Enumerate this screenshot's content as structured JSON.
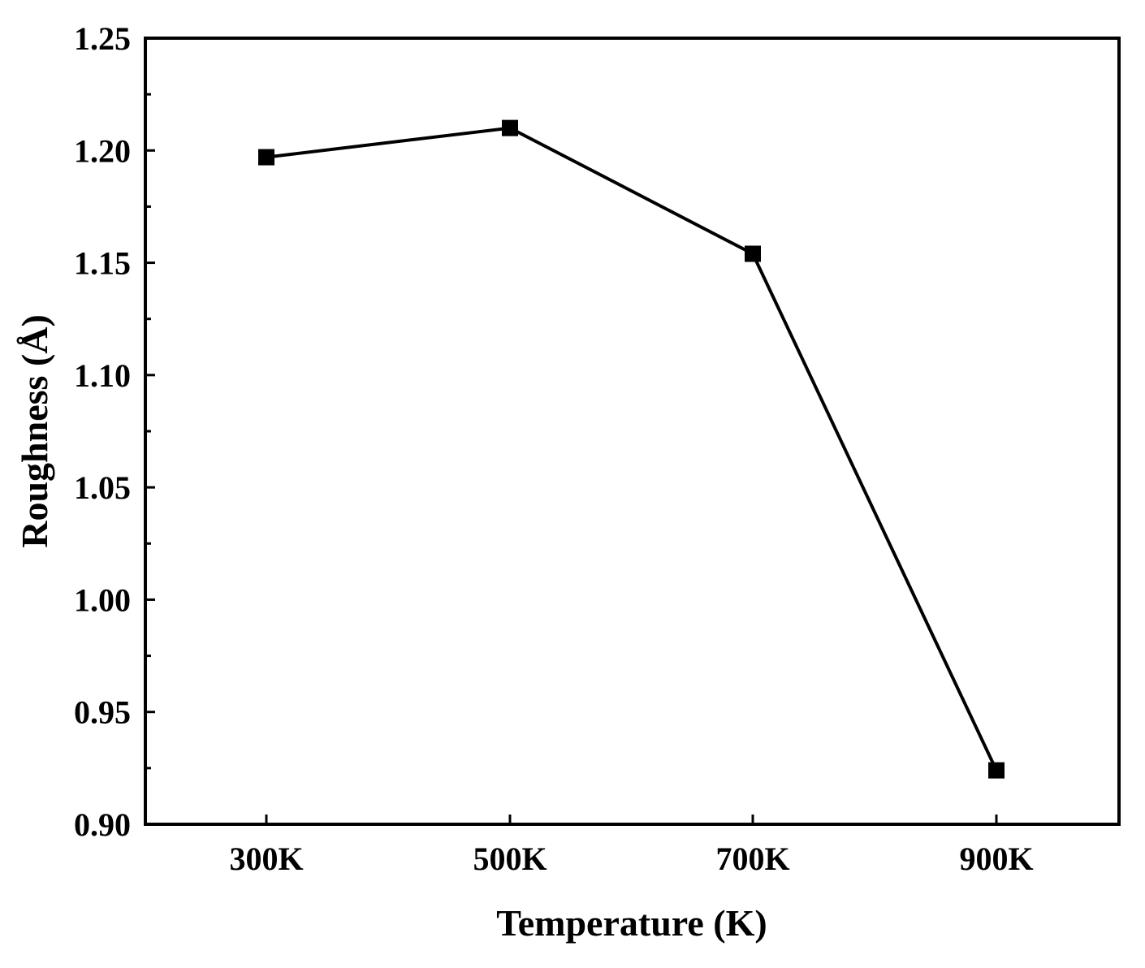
{
  "chart_data": {
    "type": "line",
    "title": "",
    "xlabel": "Temperature (K)",
    "ylabel": "Roughness (Å)",
    "categories": [
      "300K",
      "500K",
      "700K",
      "900K"
    ],
    "series": [
      {
        "values": [
          1.197,
          1.21,
          1.154,
          0.924
        ],
        "marker": "square",
        "color": "#000000"
      }
    ],
    "ylim": [
      0.9,
      1.25
    ],
    "yticks": [
      "0.90",
      "0.95",
      "1.00",
      "1.05",
      "1.10",
      "1.15",
      "1.20",
      "1.25"
    ],
    "grid": false,
    "legend": "none"
  }
}
